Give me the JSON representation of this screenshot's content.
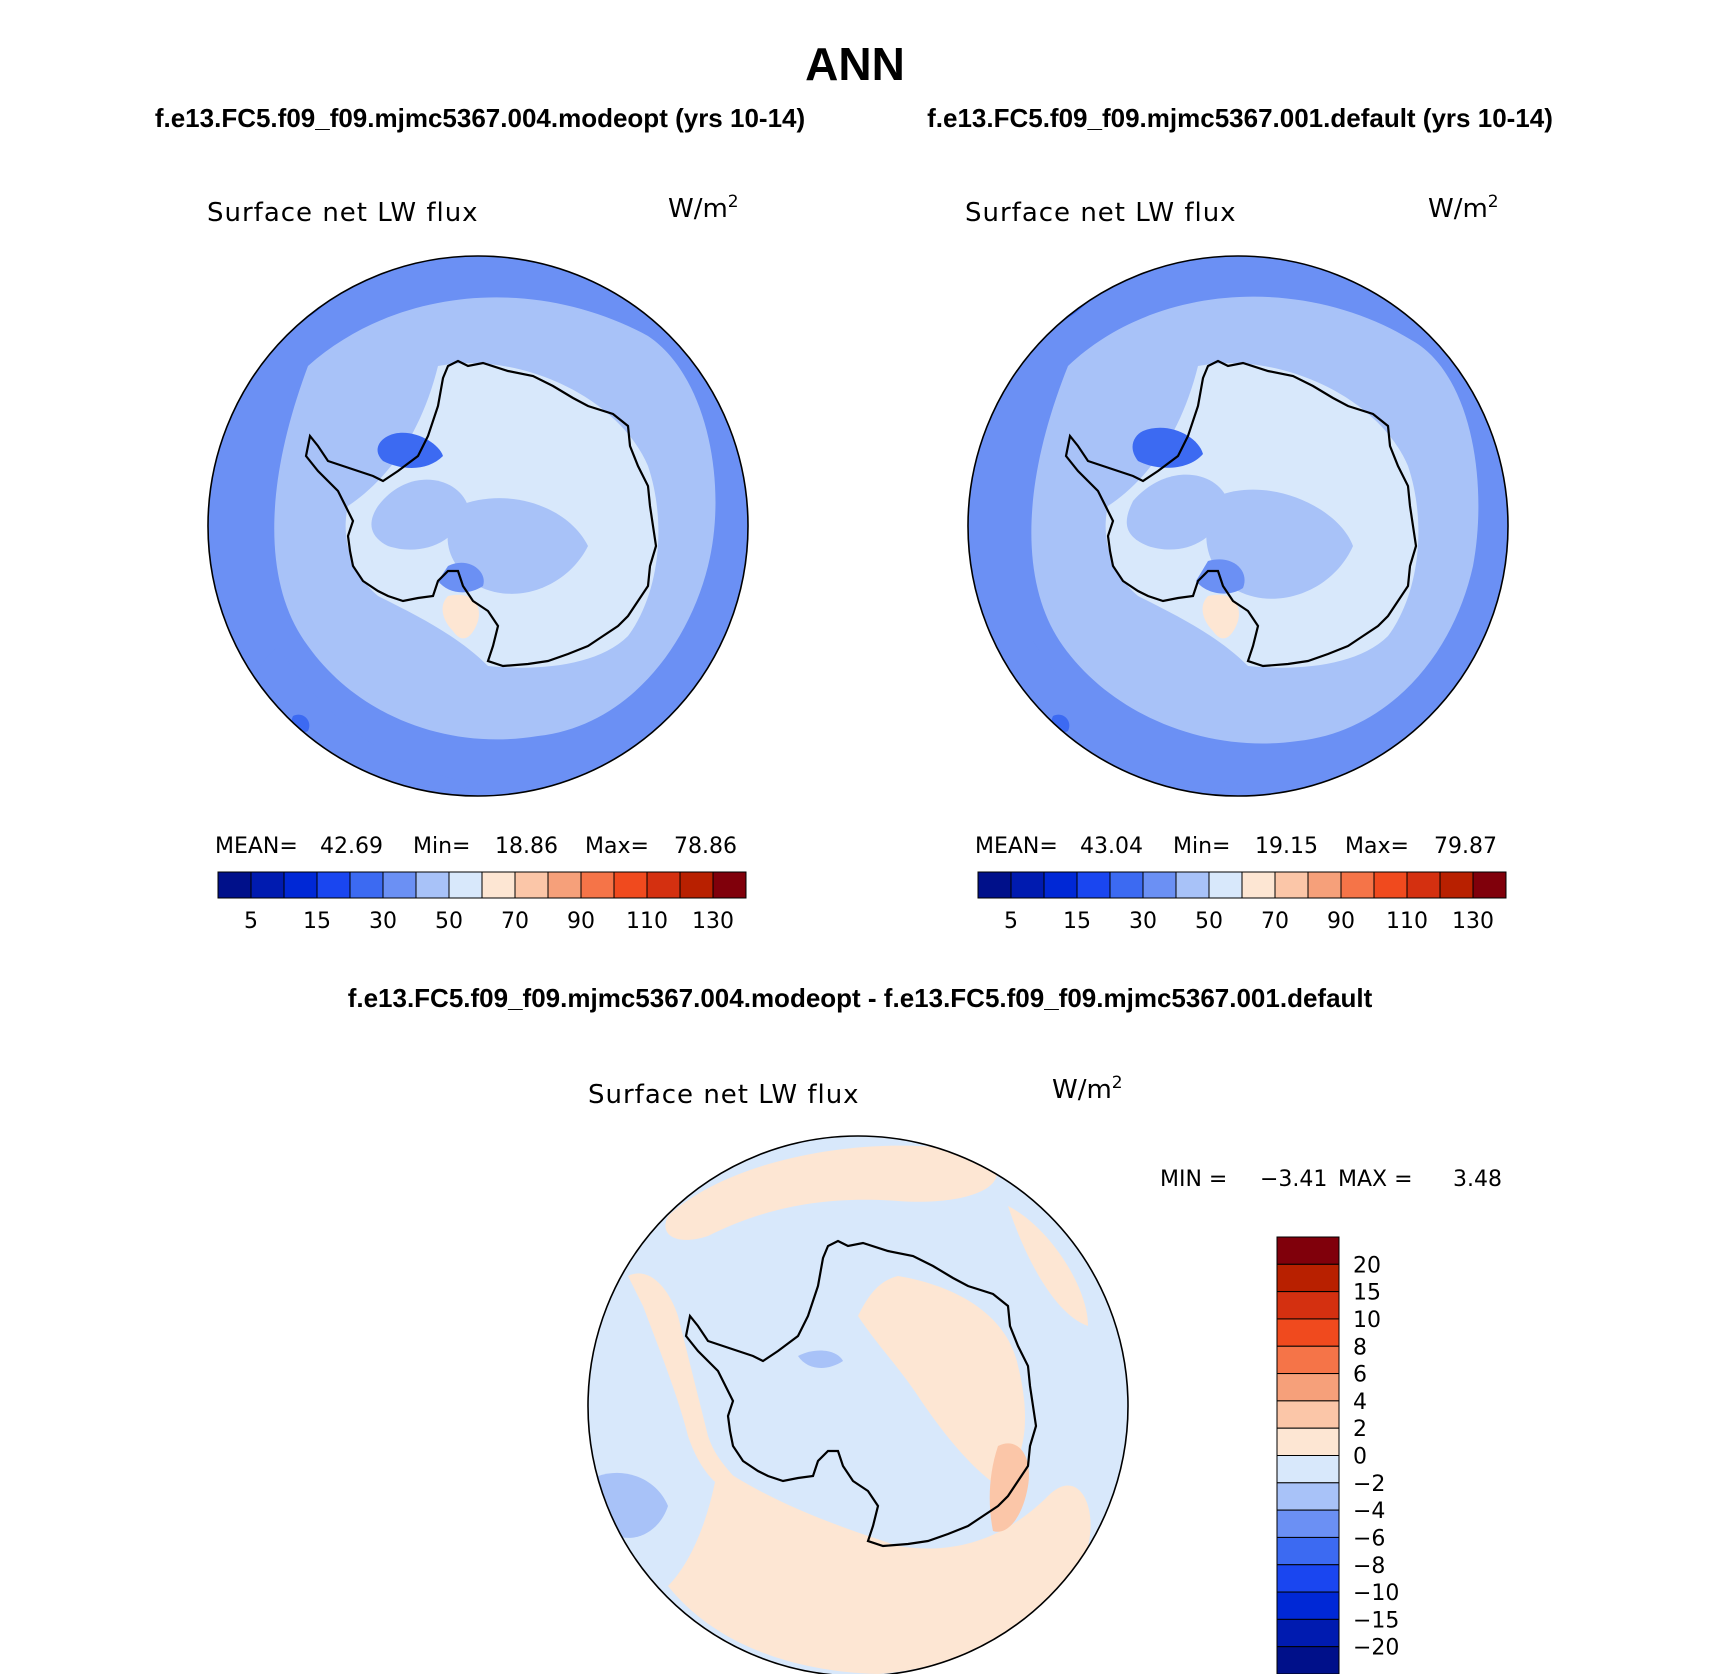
{
  "figure": {
    "title": "ANN",
    "left_case": "f.e13.FC5.f09_f09.mjmc5367.004.modeopt (yrs 10-14)",
    "right_case": "f.e13.FC5.f09_f09.mjmc5367.001.default (yrs 10-14)",
    "diff_title": "f.e13.FC5.f09_f09.mjmc5367.004.modeopt - f.e13.FC5.f09_f09.mjmc5367.001.default"
  },
  "chart_data": [
    {
      "type": "heatmap",
      "projection": "south-polar-stereographic",
      "variable": "Surface net LW flux",
      "units": "W/m",
      "units_superscript": "2",
      "stats": {
        "mean_label": "MEAN=",
        "mean": "42.69",
        "min_label": "Min=",
        "min": "18.86",
        "max_label": "Max=",
        "max": "78.86"
      },
      "colorbar": {
        "orientation": "horizontal",
        "levels": [
          5,
          10,
          15,
          20,
          30,
          40,
          50,
          60,
          70,
          80,
          90,
          100,
          110,
          120,
          130
        ],
        "tick_labels": [
          "5",
          "15",
          "30",
          "50",
          "70",
          "90",
          "110",
          "130"
        ],
        "colors": [
          "#00108a",
          "#001bb0",
          "#0028d6",
          "#1a46f0",
          "#3c6af2",
          "#6b90f4",
          "#a8c2f8",
          "#d8e8fb",
          "#fde6d3",
          "#fbc6a8",
          "#f6a07a",
          "#f57448",
          "#f04a1e",
          "#d43010",
          "#b82000",
          "#80000b"
        ]
      }
    },
    {
      "type": "heatmap",
      "projection": "south-polar-stereographic",
      "variable": "Surface net LW flux",
      "units": "W/m",
      "units_superscript": "2",
      "stats": {
        "mean_label": "MEAN=",
        "mean": "43.04",
        "min_label": "Min=",
        "min": "19.15",
        "max_label": "Max=",
        "max": "79.87"
      },
      "colorbar": {
        "orientation": "horizontal",
        "levels": [
          5,
          10,
          15,
          20,
          30,
          40,
          50,
          60,
          70,
          80,
          90,
          100,
          110,
          120,
          130
        ],
        "tick_labels": [
          "5",
          "15",
          "30",
          "50",
          "70",
          "90",
          "110",
          "130"
        ],
        "colors": [
          "#00108a",
          "#001bb0",
          "#0028d6",
          "#1a46f0",
          "#3c6af2",
          "#6b90f4",
          "#a8c2f8",
          "#d8e8fb",
          "#fde6d3",
          "#fbc6a8",
          "#f6a07a",
          "#f57448",
          "#f04a1e",
          "#d43010",
          "#b82000",
          "#80000b"
        ]
      }
    },
    {
      "type": "heatmap",
      "projection": "south-polar-stereographic",
      "variable": "Surface net LW flux",
      "units": "W/m",
      "units_superscript": "2",
      "stats": {
        "min_label": "MIN =",
        "min": "−3.41",
        "max_label": "MAX =",
        "max": "3.48"
      },
      "colorbar": {
        "orientation": "vertical",
        "tick_labels": [
          "20",
          "15",
          "10",
          "8",
          "6",
          "4",
          "2",
          "0",
          "−2",
          "−4",
          "−6",
          "−8",
          "−10",
          "−15",
          "−20"
        ],
        "colors": [
          "#80000b",
          "#b82000",
          "#d43010",
          "#f04a1e",
          "#f57448",
          "#f6a07a",
          "#fbc6a8",
          "#fde6d3",
          "#d8e8fb",
          "#a8c2f8",
          "#6b90f4",
          "#3c6af2",
          "#1a46f0",
          "#0028d6",
          "#001bb0",
          "#00108a"
        ]
      }
    }
  ]
}
